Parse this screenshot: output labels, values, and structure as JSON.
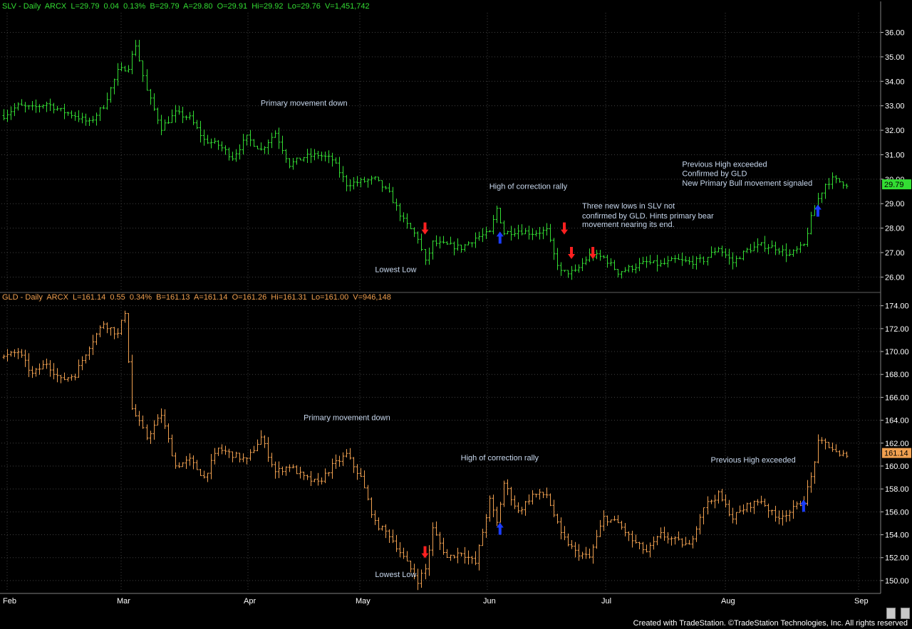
{
  "colors": {
    "background": "#000000",
    "grid": "#404040",
    "slv": "#33dd33",
    "gld": "#f0a050",
    "annotation": "#c8d8ee",
    "up_arrow": "#1a3cff",
    "down_arrow": "#ff2020"
  },
  "header": {
    "slv": "SLV - Daily  ARCX  L=29.79  0.04  0.13%  B=29.79  A=29.80  O=29.91  Hi=29.92  Lo=29.76  V=1,451,742",
    "gld": "GLD - Daily  ARCX  L=161.14  0.55  0.34%  B=161.13  A=161.14  O=161.26  Hi=161.31  Lo=161.00  V=946,148"
  },
  "footer": "Created with TradeStation. ©TradeStation Technologies, Inc. All rights reserved",
  "chart_data": [
    {
      "type": "ohlc",
      "symbol": "SLV",
      "last_label": "29.79",
      "ylim": [
        25.4,
        36.8
      ],
      "yticks": [
        "26.00",
        "27.00",
        "28.00",
        "29.00",
        "30.00",
        "31.00",
        "32.00",
        "33.00",
        "34.00",
        "35.00",
        "36.00"
      ],
      "x_months": [
        "Feb",
        "Mar",
        "Apr",
        "May",
        "Jun",
        "Jul",
        "Aug",
        "Sep"
      ],
      "anchors": [
        [
          0,
          32.6
        ],
        [
          4,
          33.0
        ],
        [
          8,
          32.9
        ],
        [
          12,
          33.1
        ],
        [
          16,
          32.8
        ],
        [
          20,
          32.6
        ],
        [
          24,
          32.3
        ],
        [
          28,
          33.0
        ],
        [
          32,
          34.4
        ],
        [
          35,
          34.6
        ],
        [
          37,
          35.5
        ],
        [
          40,
          33.6
        ],
        [
          44,
          32.1
        ],
        [
          48,
          32.7
        ],
        [
          52,
          32.5
        ],
        [
          56,
          31.6
        ],
        [
          60,
          31.4
        ],
        [
          64,
          30.9
        ],
        [
          68,
          31.7
        ],
        [
          72,
          31.2
        ],
        [
          76,
          31.9
        ],
        [
          80,
          30.6
        ],
        [
          84,
          30.9
        ],
        [
          88,
          31.0
        ],
        [
          92,
          30.8
        ],
        [
          96,
          29.8
        ],
        [
          100,
          29.9
        ],
        [
          104,
          30.0
        ],
        [
          108,
          29.4
        ],
        [
          112,
          28.3
        ],
        [
          116,
          27.6
        ],
        [
          118,
          26.6
        ],
        [
          120,
          27.4
        ],
        [
          124,
          27.3
        ],
        [
          128,
          27.2
        ],
        [
          132,
          27.6
        ],
        [
          136,
          27.8
        ],
        [
          138,
          28.8
        ],
        [
          140,
          27.8
        ],
        [
          144,
          27.9
        ],
        [
          148,
          27.8
        ],
        [
          152,
          27.9
        ],
        [
          154,
          26.9
        ],
        [
          156,
          26.2
        ],
        [
          160,
          26.2
        ],
        [
          164,
          26.9
        ],
        [
          168,
          26.8
        ],
        [
          172,
          26.2
        ],
        [
          176,
          26.4
        ],
        [
          180,
          26.6
        ],
        [
          184,
          26.5
        ],
        [
          188,
          26.7
        ],
        [
          192,
          26.6
        ],
        [
          196,
          26.7
        ],
        [
          200,
          27.2
        ],
        [
          204,
          26.6
        ],
        [
          208,
          27.1
        ],
        [
          212,
          27.3
        ],
        [
          216,
          27.2
        ],
        [
          220,
          26.9
        ],
        [
          224,
          27.3
        ],
        [
          226,
          28.4
        ],
        [
          228,
          29.2
        ],
        [
          230,
          29.8
        ],
        [
          232,
          30.0
        ],
        [
          234,
          29.9
        ],
        [
          236,
          29.8
        ]
      ],
      "bars_count": 237,
      "annotations": [
        {
          "text": "Primary movement down",
          "x": 72,
          "y": 33.0
        },
        {
          "text": "High of correction rally",
          "x": 136,
          "y": 29.6
        },
        {
          "text": "Lowest Low",
          "x": 104,
          "y": 26.2
        },
        {
          "text": "Three new lows in SLV not",
          "x": 162,
          "y": 28.8
        },
        {
          "text": "confirmed by GLD. Hints primary bear",
          "x": 162,
          "y": 28.4
        },
        {
          "text": "movement nearing its end.",
          "x": 162,
          "y": 28.05
        },
        {
          "text": "Previous High exceeded",
          "x": 190,
          "y": 30.5
        },
        {
          "text": "Confirmed by GLD",
          "x": 190,
          "y": 30.12
        },
        {
          "text": "New Primary Bull movement signaled",
          "x": 190,
          "y": 29.74
        }
      ],
      "arrows": [
        {
          "dir": "down",
          "x": 118,
          "y": 28.0
        },
        {
          "dir": "up",
          "x": 139,
          "y": 27.6
        },
        {
          "dir": "down",
          "x": 157,
          "y": 28.0
        },
        {
          "dir": "down",
          "x": 159,
          "y": 27.0
        },
        {
          "dir": "down",
          "x": 165,
          "y": 27.0
        },
        {
          "dir": "up",
          "x": 228,
          "y": 28.7
        }
      ]
    },
    {
      "type": "ohlc",
      "symbol": "GLD",
      "last_label": "161.14",
      "ylim": [
        149.0,
        174.6
      ],
      "yticks": [
        "150.00",
        "152.00",
        "154.00",
        "156.00",
        "158.00",
        "160.00",
        "162.00",
        "164.00",
        "166.00",
        "168.00",
        "170.00",
        "172.00",
        "174.00"
      ],
      "x_months": [
        "Feb",
        "Mar",
        "Apr",
        "May",
        "Jun",
        "Jul",
        "Aug",
        "Sep"
      ],
      "anchors": [
        [
          0,
          169.5
        ],
        [
          4,
          170.0
        ],
        [
          8,
          168.0
        ],
        [
          12,
          169.0
        ],
        [
          16,
          167.5
        ],
        [
          20,
          168.0
        ],
        [
          24,
          170.5
        ],
        [
          28,
          172.5
        ],
        [
          32,
          171.5
        ],
        [
          34,
          173.5
        ],
        [
          36,
          165.0
        ],
        [
          40,
          162.5
        ],
        [
          44,
          164.5
        ],
        [
          48,
          160.0
        ],
        [
          52,
          160.5
        ],
        [
          56,
          159.0
        ],
        [
          60,
          161.5
        ],
        [
          64,
          161.0
        ],
        [
          68,
          160.5
        ],
        [
          72,
          162.5
        ],
        [
          76,
          159.5
        ],
        [
          80,
          160.0
        ],
        [
          84,
          159.0
        ],
        [
          88,
          158.5
        ],
        [
          92,
          160.0
        ],
        [
          96,
          161.0
        ],
        [
          100,
          159.0
        ],
        [
          104,
          155.0
        ],
        [
          108,
          154.0
        ],
        [
          112,
          152.0
        ],
        [
          116,
          150.0
        ],
        [
          118,
          151.0
        ],
        [
          120,
          154.5
        ],
        [
          124,
          152.0
        ],
        [
          128,
          152.5
        ],
        [
          132,
          151.5
        ],
        [
          136,
          157.0
        ],
        [
          138,
          155.0
        ],
        [
          140,
          158.5
        ],
        [
          144,
          156.0
        ],
        [
          148,
          157.5
        ],
        [
          152,
          157.5
        ],
        [
          156,
          154.0
        ],
        [
          160,
          152.5
        ],
        [
          164,
          152.0
        ],
        [
          168,
          155.5
        ],
        [
          172,
          155.0
        ],
        [
          176,
          153.5
        ],
        [
          180,
          152.5
        ],
        [
          184,
          154.0
        ],
        [
          188,
          153.5
        ],
        [
          192,
          153.0
        ],
        [
          196,
          156.5
        ],
        [
          200,
          157.5
        ],
        [
          204,
          155.5
        ],
        [
          208,
          156.5
        ],
        [
          212,
          157.0
        ],
        [
          216,
          155.5
        ],
        [
          220,
          156.0
        ],
        [
          224,
          157.0
        ],
        [
          226,
          159.0
        ],
        [
          228,
          162.0
        ],
        [
          230,
          162.0
        ],
        [
          232,
          161.5
        ],
        [
          234,
          160.8
        ],
        [
          236,
          161.1
        ]
      ],
      "bars_count": 237,
      "annotations": [
        {
          "text": "Primary movement down",
          "x": 84,
          "y": 164.0
        },
        {
          "text": "High of correction rally",
          "x": 128,
          "y": 160.5
        },
        {
          "text": "Lowest Low",
          "x": 104,
          "y": 150.3
        },
        {
          "text": "Previous High exceeded",
          "x": 198,
          "y": 160.3
        }
      ],
      "arrows": [
        {
          "dir": "down",
          "x": 118,
          "y": 152.5
        },
        {
          "dir": "up",
          "x": 139,
          "y": 154.5
        },
        {
          "dir": "up",
          "x": 224,
          "y": 156.5
        }
      ]
    }
  ]
}
